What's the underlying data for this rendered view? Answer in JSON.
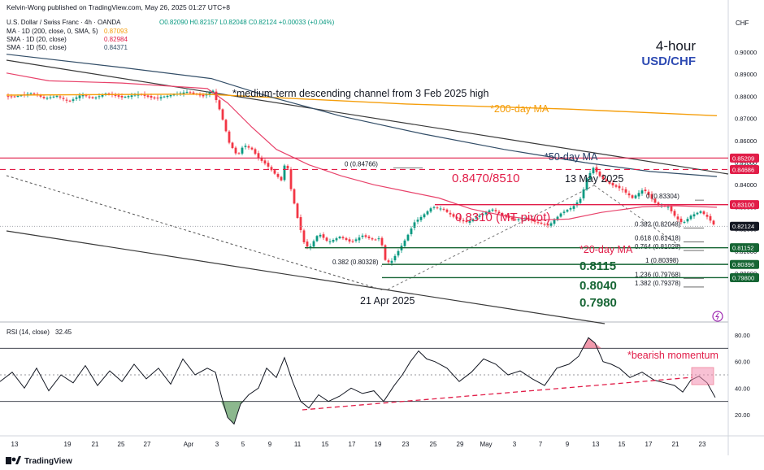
{
  "header": {
    "publisher": "Kelvin-Wong published on TradingView.com, May 26, 2025 01:27 UTC+8",
    "symbol_line": "U.S. Dollar / Swiss Franc · 4h · OANDA",
    "ohlc": "O0.82090  H0.82157  L0.82048  C0.82124  +0.00033 (+0.04%)",
    "indicators": [
      {
        "label": "MA · 1D (200, close, 0, SMA, 5)",
        "value": "0.87093",
        "color": "#f59e0b"
      },
      {
        "label": "SMA · 1D (20, close)",
        "value": "0.82984",
        "color": "#e11d48"
      },
      {
        "label": "SMA · 1D (50, close)",
        "value": "0.84371",
        "color": "#334e68"
      }
    ]
  },
  "titles": {
    "timeframe": "4-hour",
    "pair": "USD/CHF"
  },
  "annotations": {
    "channel": "*medium-term descending channel from 3 Feb 2025 high",
    "ma200": "*200-day MA",
    "ma50": "*50-day MA",
    "ma20": "*20-day MA",
    "res_zone": "0.8470/8510",
    "pivot": "0.8310 (MT pivot)",
    "s1": "0.8115",
    "s2": "0.8040",
    "s3": "0.7980",
    "may13": "13 May 2025",
    "apr21": "21 Apr 2025",
    "bearish": "*bearish momentum"
  },
  "fib": [
    {
      "label": "0 (0.84766)",
      "value": 0.84766
    },
    {
      "label": "0.382 (0.80328)",
      "value": 0.80328
    },
    {
      "label": "0 (0.83304)",
      "value": 0.83304
    },
    {
      "label": "0.382 (0.82048)",
      "value": 0.82048
    },
    {
      "label": "0.618 (0.81418)",
      "value": 0.81418
    },
    {
      "label": "0.764 (0.81028)",
      "value": 0.81028
    },
    {
      "label": "1 (0.80398)",
      "value": 0.80398
    },
    {
      "label": "1.236 (0.79768)",
      "value": 0.79768
    },
    {
      "label": "1.382 (0.79378)",
      "value": 0.79378
    }
  ],
  "price_axis": {
    "currency": "CHF",
    "ticks": [
      "0.90000",
      "0.89000",
      "0.88000",
      "0.87000",
      "0.86000",
      "0.85000",
      "0.84000",
      "0.83000",
      "0.82000",
      "0.81000",
      "0.80000"
    ]
  },
  "price_badges": [
    {
      "value": "0.85209",
      "color": "#e11d48"
    },
    {
      "value": "0.84686",
      "color": "#e11d48"
    },
    {
      "value": "0.83100",
      "color": "#e11d48"
    },
    {
      "value": "0.82124",
      "color": "#131722"
    },
    {
      "value": "0.81152",
      "color": "#166534"
    },
    {
      "value": "0.80396",
      "color": "#166534"
    },
    {
      "value": "0.79800",
      "color": "#166534"
    }
  ],
  "rsi": {
    "label": "RSI (14, close)",
    "value": "32.45",
    "ticks": [
      "80.00",
      "60.00",
      "40.00",
      "20.00"
    ]
  },
  "x_axis": [
    "13",
    "19",
    "21",
    "25",
    "27",
    "Apr",
    "3",
    "5",
    "9",
    "11",
    "15",
    "17",
    "19",
    "23",
    "25",
    "29",
    "May",
    "3",
    "7",
    "9",
    "13",
    "15",
    "17",
    "21",
    "23"
  ],
  "footer": "TradingView",
  "chart_data": {
    "type": "line",
    "price_range": [
      0.785,
      0.905
    ],
    "rsi_range": [
      10,
      87
    ],
    "price_path": [
      [
        0,
        0.8795
      ],
      [
        20,
        0.88
      ],
      [
        40,
        0.8815
      ],
      [
        55,
        0.879
      ],
      [
        70,
        0.8802
      ],
      [
        85,
        0.8775
      ],
      [
        100,
        0.8808
      ],
      [
        115,
        0.879
      ],
      [
        130,
        0.8812
      ],
      [
        150,
        0.8795
      ],
      [
        170,
        0.881
      ],
      [
        190,
        0.879
      ],
      [
        210,
        0.8805
      ],
      [
        230,
        0.882
      ],
      [
        250,
        0.88
      ],
      [
        262,
        0.8825
      ],
      [
        272,
        0.872
      ],
      [
        282,
        0.859
      ],
      [
        292,
        0.853
      ],
      [
        300,
        0.858
      ],
      [
        310,
        0.856
      ],
      [
        318,
        0.852
      ],
      [
        328,
        0.849
      ],
      [
        338,
        0.845
      ],
      [
        346,
        0.842
      ],
      [
        352,
        0.852
      ],
      [
        358,
        0.838
      ],
      [
        366,
        0.825
      ],
      [
        374,
        0.814
      ],
      [
        380,
        0.811
      ],
      [
        392,
        0.818
      ],
      [
        404,
        0.814
      ],
      [
        418,
        0.8165
      ],
      [
        432,
        0.814
      ],
      [
        446,
        0.817
      ],
      [
        460,
        0.815
      ],
      [
        468,
        0.816
      ],
      [
        474,
        0.806
      ],
      [
        480,
        0.8045
      ],
      [
        490,
        0.81
      ],
      [
        500,
        0.816
      ],
      [
        510,
        0.823
      ],
      [
        520,
        0.826
      ],
      [
        532,
        0.83
      ],
      [
        545,
        0.829
      ],
      [
        560,
        0.825
      ],
      [
        575,
        0.823
      ],
      [
        590,
        0.826
      ],
      [
        605,
        0.829
      ],
      [
        620,
        0.826
      ],
      [
        632,
        0.824
      ],
      [
        645,
        0.825
      ],
      [
        660,
        0.823
      ],
      [
        675,
        0.8215
      ],
      [
        690,
        0.827
      ],
      [
        705,
        0.83
      ],
      [
        715,
        0.834
      ],
      [
        722,
        0.843
      ],
      [
        730,
        0.8476
      ],
      [
        740,
        0.843
      ],
      [
        752,
        0.84
      ],
      [
        765,
        0.838
      ],
      [
        778,
        0.834
      ],
      [
        792,
        0.838
      ],
      [
        808,
        0.831
      ],
      [
        822,
        0.83
      ],
      [
        832,
        0.825
      ],
      [
        840,
        0.8225
      ],
      [
        850,
        0.826
      ],
      [
        862,
        0.828
      ],
      [
        870,
        0.8255
      ],
      [
        880,
        0.8212
      ]
    ],
    "ma200_path": [
      [
        8,
        0.8805
      ],
      [
        250,
        0.881
      ],
      [
        500,
        0.8765
      ],
      [
        700,
        0.8742
      ],
      [
        882,
        0.8712
      ]
    ],
    "ma20_path": [
      [
        8,
        0.8905
      ],
      [
        60,
        0.887
      ],
      [
        150,
        0.886
      ],
      [
        255,
        0.8835
      ],
      [
        280,
        0.877
      ],
      [
        310,
        0.866
      ],
      [
        340,
        0.856
      ],
      [
        380,
        0.849
      ],
      [
        420,
        0.844
      ],
      [
        460,
        0.84
      ],
      [
        500,
        0.837
      ],
      [
        540,
        0.834
      ],
      [
        580,
        0.829
      ],
      [
        620,
        0.826
      ],
      [
        660,
        0.824
      ],
      [
        700,
        0.8245
      ],
      [
        740,
        0.8275
      ],
      [
        790,
        0.83
      ],
      [
        830,
        0.8305
      ],
      [
        882,
        0.8298
      ]
    ],
    "ma50_path": [
      [
        8,
        0.899
      ],
      [
        150,
        0.893
      ],
      [
        260,
        0.888
      ],
      [
        330,
        0.88
      ],
      [
        420,
        0.871
      ],
      [
        520,
        0.863
      ],
      [
        620,
        0.856
      ],
      [
        720,
        0.85
      ],
      [
        800,
        0.846
      ],
      [
        882,
        0.8437
      ]
    ],
    "rsi_path": [
      [
        0,
        45
      ],
      [
        15,
        52
      ],
      [
        30,
        40
      ],
      [
        45,
        55
      ],
      [
        60,
        38
      ],
      [
        75,
        50
      ],
      [
        90,
        44
      ],
      [
        105,
        57
      ],
      [
        120,
        42
      ],
      [
        135,
        53
      ],
      [
        150,
        45
      ],
      [
        165,
        58
      ],
      [
        180,
        47
      ],
      [
        195,
        55
      ],
      [
        210,
        43
      ],
      [
        225,
        62
      ],
      [
        240,
        50
      ],
      [
        255,
        55
      ],
      [
        265,
        52
      ],
      [
        272,
        35
      ],
      [
        280,
        18
      ],
      [
        288,
        13
      ],
      [
        296,
        28
      ],
      [
        306,
        35
      ],
      [
        318,
        40
      ],
      [
        328,
        55
      ],
      [
        340,
        48
      ],
      [
        350,
        63
      ],
      [
        360,
        45
      ],
      [
        370,
        30
      ],
      [
        380,
        25
      ],
      [
        392,
        35
      ],
      [
        404,
        30
      ],
      [
        418,
        34
      ],
      [
        432,
        40
      ],
      [
        446,
        36
      ],
      [
        460,
        38
      ],
      [
        472,
        30
      ],
      [
        485,
        42
      ],
      [
        495,
        50
      ],
      [
        505,
        60
      ],
      [
        515,
        68
      ],
      [
        525,
        62
      ],
      [
        535,
        60
      ],
      [
        550,
        55
      ],
      [
        565,
        45
      ],
      [
        580,
        52
      ],
      [
        595,
        62
      ],
      [
        610,
        58
      ],
      [
        625,
        50
      ],
      [
        640,
        53
      ],
      [
        655,
        47
      ],
      [
        670,
        42
      ],
      [
        685,
        55
      ],
      [
        700,
        58
      ],
      [
        712,
        64
      ],
      [
        724,
        78
      ],
      [
        732,
        74
      ],
      [
        742,
        60
      ],
      [
        752,
        58
      ],
      [
        762,
        55
      ],
      [
        775,
        48
      ],
      [
        790,
        52
      ],
      [
        805,
        46
      ],
      [
        818,
        44
      ],
      [
        830,
        42
      ],
      [
        840,
        37
      ],
      [
        850,
        46
      ],
      [
        860,
        49
      ],
      [
        870,
        44
      ],
      [
        880,
        33
      ]
    ]
  }
}
